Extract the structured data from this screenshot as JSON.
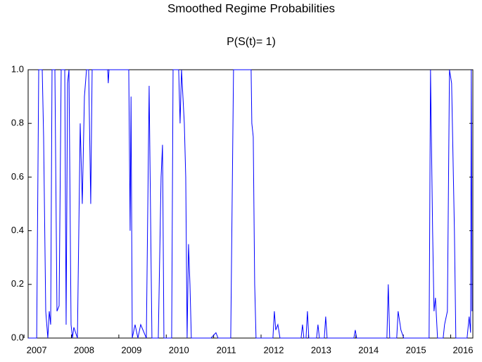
{
  "chart_data": {
    "type": "line",
    "title": "Smoothed Regime Probabilities",
    "subtitle": "P(S(t)= 1)",
    "xlim": [
      2006.82,
      2016.2
    ],
    "xticks": [
      2007,
      2008,
      2009,
      2010,
      2011,
      2012,
      2013,
      2014,
      2015,
      2016
    ],
    "ylim": [
      0,
      1
    ],
    "yticks": [
      {
        "value": 0,
        "label": "0.0"
      },
      0.2,
      0.4,
      0.6,
      0.8,
      {
        "value": 1,
        "label": "1.0"
      }
    ],
    "grid": false,
    "x": [
      2006.82,
      2007.0,
      2007.013,
      2007.043,
      2007.117,
      2007.146,
      2007.191,
      2007.235,
      2007.265,
      2007.295,
      2007.324,
      2007.384,
      2007.428,
      2007.473,
      2007.517,
      2007.592,
      2007.621,
      2007.651,
      2007.681,
      2007.725,
      2007.755,
      2007.784,
      2007.859,
      2007.918,
      2007.962,
      2008.007,
      2008.051,
      2008.096,
      2008.14,
      2008.17,
      2008.497,
      2008.51,
      2008.526,
      2008.942,
      2008.971,
      2008.99,
      2009.016,
      2009.075,
      2009.135,
      2009.194,
      2009.313,
      2009.372,
      2009.431,
      2009.565,
      2009.624,
      2009.654,
      2009.684,
      2009.847,
      2009.877,
      2009.995,
      2010.025,
      2010.055,
      2010.114,
      2010.144,
      2010.173,
      2010.203,
      2010.233,
      2010.262,
      2010.678,
      2010.781,
      2010.826,
      2011.093,
      2011.152,
      2011.523,
      2011.538,
      2011.568,
      2011.598,
      2011.627,
      2011.983,
      2012.013,
      2012.043,
      2012.087,
      2012.132,
      2012.577,
      2012.607,
      2012.636,
      2012.681,
      2012.711,
      2012.74,
      2012.903,
      2012.933,
      2012.963,
      2013.067,
      2013.096,
      2013.126,
      2013.69,
      2013.72,
      2013.749,
      2014.387,
      2014.416,
      2014.446,
      2014.594,
      2014.624,
      2014.683,
      2014.743,
      2015.277,
      2015.307,
      2015.351,
      2015.381,
      2015.411,
      2015.455,
      2015.574,
      2015.603,
      2015.663,
      2015.707,
      2015.752,
      2015.811,
      2015.841,
      2016.078,
      2016.122,
      2016.152,
      2016.167,
      2016.182
    ],
    "series": [
      {
        "name": "P(S(t)= 1)",
        "color": "#0000ff",
        "values": [
          0,
          0,
          0.3,
          1.0,
          1.0,
          0.75,
          0.1,
          0,
          0.1,
          0.05,
          1.0,
          1.0,
          0.1,
          0.12,
          1.0,
          1.0,
          0.05,
          0.95,
          1.0,
          0.05,
          0,
          0.04,
          0,
          0.8,
          0.5,
          0.9,
          1.0,
          1.0,
          0.5,
          1.0,
          1.0,
          0.95,
          1.0,
          1.0,
          0.4,
          0.9,
          0,
          0.05,
          0,
          0.05,
          0,
          0.94,
          0,
          0,
          0.6,
          0.72,
          0,
          0,
          1.0,
          1.0,
          0.8,
          1.0,
          0.8,
          0.6,
          0,
          0.35,
          0.2,
          0,
          0,
          0.02,
          0,
          0,
          1.0,
          1.0,
          0.8,
          0.75,
          0.2,
          0,
          0,
          0.1,
          0.03,
          0.05,
          0,
          0,
          0.05,
          0,
          0,
          0.1,
          0,
          0,
          0.05,
          0,
          0,
          0.08,
          0,
          0,
          0.03,
          0,
          0,
          0.2,
          0,
          0,
          0.1,
          0.03,
          0,
          0,
          1.0,
          0.4,
          0.1,
          0.15,
          0,
          0,
          0.05,
          0.1,
          1.0,
          0.95,
          0.4,
          0,
          0,
          0.08,
          0.02,
          1.0,
          0.1
        ]
      }
    ]
  }
}
